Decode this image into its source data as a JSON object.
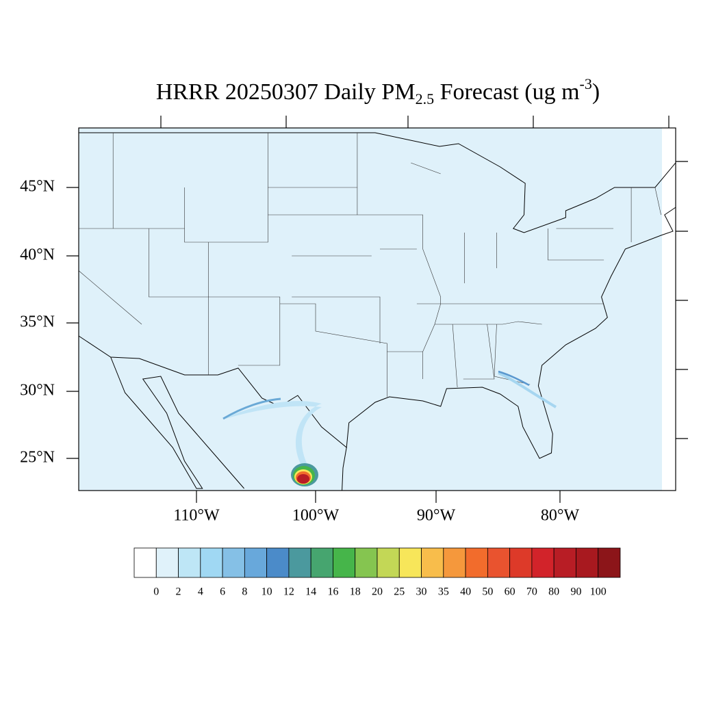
{
  "title": {
    "main": "HRRR 20250307 Daily PM",
    "sub": "2.5",
    "mid": " Forecast (ug m",
    "sup": "-3",
    "end": ")"
  },
  "lat_labels": [
    "45°N",
    "40°N",
    "35°N",
    "30°N",
    "25°N"
  ],
  "lon_labels": [
    "110°W",
    "100°W",
    "90°W",
    "80°W"
  ],
  "colorbar": {
    "levels": [
      0,
      2,
      4,
      6,
      8,
      10,
      12,
      14,
      16,
      18,
      20,
      25,
      30,
      35,
      40,
      50,
      60,
      70,
      80,
      90,
      100
    ],
    "colors": [
      "#ffffff",
      "#e0f2fa",
      "#bee6f6",
      "#a0d8f3",
      "#85c0e6",
      "#68a8db",
      "#4b8bc9",
      "#4b999e",
      "#46a56f",
      "#46b54a",
      "#85c550",
      "#c3d756",
      "#f7e65a",
      "#f8bd4b",
      "#f5983c",
      "#f26c2c",
      "#e9532f",
      "#dd3a29",
      "#d2232a",
      "#b81d25",
      "#a8191f",
      "#8c1519"
    ]
  }
}
